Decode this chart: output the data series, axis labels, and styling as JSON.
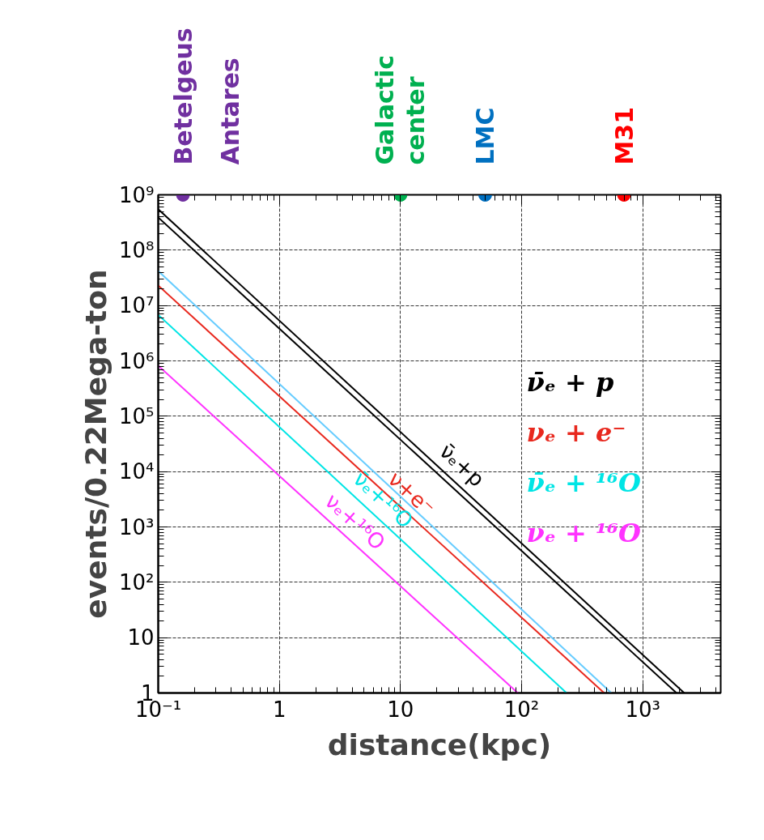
{
  "chart_data": {
    "type": "line",
    "xlabel": "distance(kpc)",
    "ylabel": "events/0.22Mega-ton",
    "log": "xy",
    "grid": true,
    "legend": "right",
    "line_style": "solid",
    "marker": "none",
    "xlim": [
      0.1,
      4400
    ],
    "ylim": [
      1,
      1000000000
    ],
    "xticks": [
      {
        "value": 0.1,
        "label": "10⁻¹"
      },
      1,
      10,
      {
        "value": 100,
        "label": "10²"
      },
      {
        "value": 1000,
        "label": "10³"
      }
    ],
    "yticks": [
      1,
      10,
      {
        "value": 100,
        "label": "10²"
      },
      {
        "value": 1000,
        "label": "10³"
      },
      {
        "value": 10000,
        "label": "10⁴"
      },
      {
        "value": 100000,
        "label": "10⁵"
      },
      {
        "value": 1000000,
        "label": "10⁶"
      },
      {
        "value": 10000000,
        "label": "10⁷"
      },
      {
        "value": 100000000,
        "label": "10⁸"
      },
      {
        "value": 1000000000,
        "label": "10⁹"
      }
    ],
    "series": [
      {
        "name": "ν̄ₑ + p",
        "color": "#000000",
        "x": [
          0.1,
          2200
        ],
        "values": [
          550000000,
          1
        ]
      },
      {
        "color": "#000000",
        "x": [
          0.1,
          1900
        ],
        "values": [
          390000000,
          1
        ]
      },
      {
        "name": "νₑ + e⁻",
        "color": "#e8281e",
        "x": [
          0.1,
          480
        ],
        "values": [
          23000000,
          1
        ]
      },
      {
        "color": "#66ccff",
        "x": [
          0.1,
          550
        ],
        "values": [
          42000000,
          1
        ]
      },
      {
        "name": "ν̄ₑ + ¹⁶O",
        "color": "#00e5e5",
        "x": [
          0.1,
          235
        ],
        "values": [
          6800000,
          1
        ]
      },
      {
        "name": "νₑ + ¹⁶O",
        "color": "#ff33ff",
        "x": [
          0.1,
          93
        ],
        "values": [
          820000,
          1
        ]
      },
      {
        "type": "scatter",
        "marker": "circle",
        "colors": [
          "#7030a0",
          "#00b050",
          "#0070c0",
          "#ff0000"
        ],
        "x": [
          0.16,
          10,
          50,
          700
        ],
        "values": [
          1000000000,
          1000000000,
          1000000000,
          1000000000
        ]
      }
    ],
    "annotations": [
      "Betelgeus",
      "Antares",
      "Galactic\ncenter",
      "LMC",
      "M31",
      "ν̄ₑ+p",
      "ν+e⁻",
      "ν̄ₑ+¹⁶O",
      "νₑ+¹⁶O"
    ]
  }
}
